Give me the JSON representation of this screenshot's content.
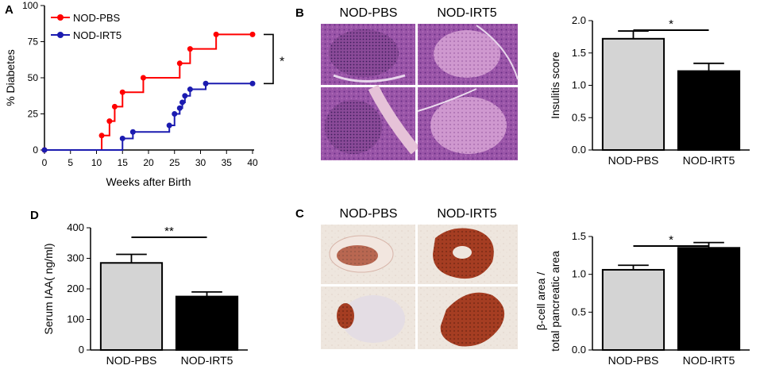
{
  "colors": {
    "pbs_line": "#ff0000",
    "irt5_line": "#1b1bb0",
    "bar_pbs": "#d4d4d4",
    "bar_irt5": "#000000",
    "he_dark": "#7a3f93",
    "he_light": "#c58ac8",
    "ihc_brown": "#a33a1e",
    "ihc_bg": "#ece4dc"
  },
  "panels": {
    "A": {
      "letter": "A"
    },
    "B": {
      "letter": "B",
      "image_labels": [
        "NOD-PBS",
        "NOD-IRT5"
      ]
    },
    "C": {
      "letter": "C",
      "image_labels": [
        "NOD-PBS",
        "NOD-IRT5"
      ]
    },
    "D": {
      "letter": "D"
    }
  },
  "chart_data": [
    {
      "id": "A",
      "type": "line",
      "subtype": "step",
      "xlabel": "Weeks after Birth",
      "ylabel": "% Diabetes",
      "xlim": [
        0,
        40
      ],
      "ylim": [
        0,
        100
      ],
      "xticks": [
        "0",
        "5",
        "10",
        "15",
        "20",
        "25",
        "30",
        "35",
        "40"
      ],
      "yticks": [
        "0",
        "25",
        "50",
        "75",
        "100"
      ],
      "legend_position": "top-left",
      "annotation": "*",
      "series": [
        {
          "name": "NOD-PBS",
          "x": [
            0,
            11,
            12.5,
            13.5,
            15,
            17,
            19,
            26,
            27,
            28,
            31,
            33,
            40
          ],
          "y": [
            0,
            10,
            20,
            30,
            40,
            40,
            50,
            60,
            60,
            70,
            70,
            80,
            80
          ],
          "markers_x": [
            0,
            11,
            12.5,
            13.5,
            15,
            19,
            26,
            28,
            33,
            40
          ]
        },
        {
          "name": "NOD-IRT5",
          "x": [
            0,
            15,
            17,
            24,
            25,
            26,
            26.5,
            27,
            28,
            29,
            31,
            40
          ],
          "y": [
            0,
            8,
            12.5,
            17,
            25,
            29,
            33,
            37.5,
            42,
            42,
            46,
            46
          ],
          "markers_x": [
            0,
            15,
            17,
            24,
            25,
            26,
            26.5,
            27,
            28,
            31,
            40
          ]
        }
      ]
    },
    {
      "id": "B",
      "type": "bar",
      "categories": [
        "NOD-PBS",
        "NOD-IRT5"
      ],
      "values": [
        1.72,
        1.22
      ],
      "errors": [
        0.12,
        0.12
      ],
      "ylabel": "Insulitis score",
      "ylim": [
        0,
        2.0
      ],
      "yticks": [
        "0.0",
        "0.5",
        "1.0",
        "1.5",
        "2.0"
      ],
      "significance": "*"
    },
    {
      "id": "C",
      "type": "bar",
      "categories": [
        "NOD-PBS",
        "NOD-IRT5"
      ],
      "values": [
        1.06,
        1.35
      ],
      "errors": [
        0.06,
        0.07
      ],
      "ylabel_line1": "β-cell area /",
      "ylabel_line2": "total pancreatic area",
      "ylim": [
        0,
        1.5
      ],
      "yticks": [
        "0.0",
        "0.5",
        "1.0",
        "1.5"
      ],
      "significance": "*"
    },
    {
      "id": "D",
      "type": "bar",
      "categories": [
        "NOD-PBS",
        "NOD-IRT5"
      ],
      "values": [
        285,
        175
      ],
      "errors": [
        28,
        15
      ],
      "ylabel": "Serum IAA(  ng/ml)",
      "ylim": [
        0,
        400
      ],
      "yticks": [
        "0",
        "100",
        "200",
        "300",
        "400"
      ],
      "significance": "**"
    }
  ]
}
